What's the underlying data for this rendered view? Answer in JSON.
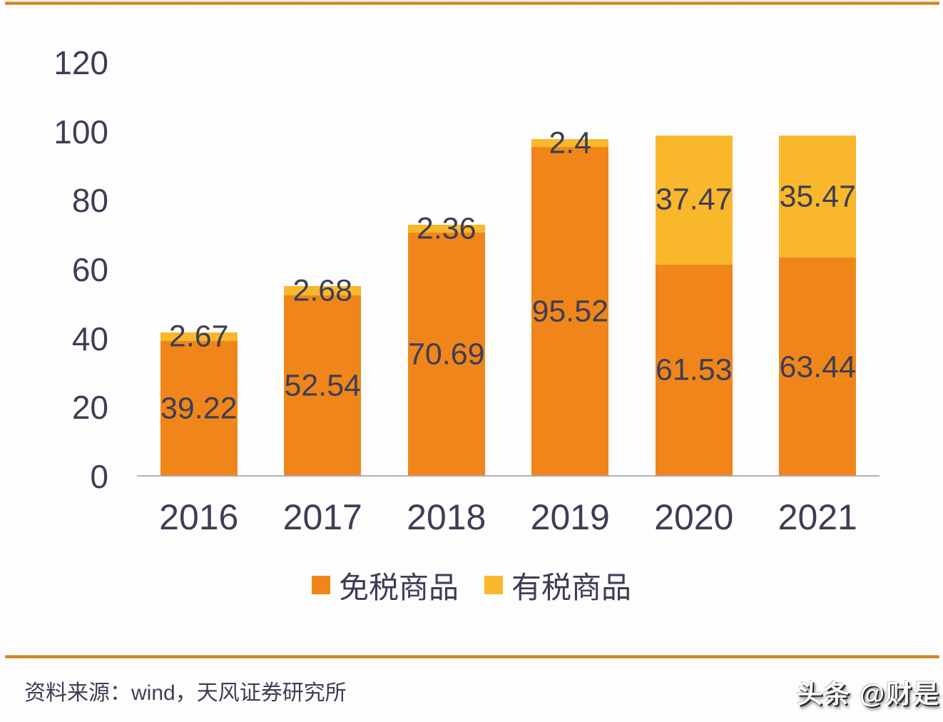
{
  "chart_data": {
    "type": "bar",
    "stacked": true,
    "categories": [
      "2016",
      "2017",
      "2018",
      "2019",
      "2020",
      "2021"
    ],
    "series": [
      {
        "name": "免税商品",
        "color": "#F0861A",
        "values": [
          39.22,
          52.54,
          70.69,
          95.52,
          61.53,
          63.44
        ]
      },
      {
        "name": "有税商品",
        "color": "#F9B72B",
        "values": [
          2.67,
          2.68,
          2.36,
          2.4,
          37.47,
          35.47
        ]
      }
    ],
    "ylim": [
      0,
      120
    ],
    "yticks": [
      0,
      20,
      40,
      60,
      80,
      100,
      120
    ],
    "grid": false,
    "legend_position": "bottom",
    "value_labels": true,
    "xlabel": "",
    "ylabel": "",
    "title": ""
  },
  "footer": {
    "source_label": "资料来源：wind，天风证券研究所"
  },
  "watermark": {
    "text": "头条 @财是"
  },
  "colors": {
    "duty_free": "#F0861A",
    "taxed": "#F9B72B",
    "text": "#3D3E55",
    "axis_line": "#A9A9AE",
    "border_rule": "#C57A1C"
  }
}
